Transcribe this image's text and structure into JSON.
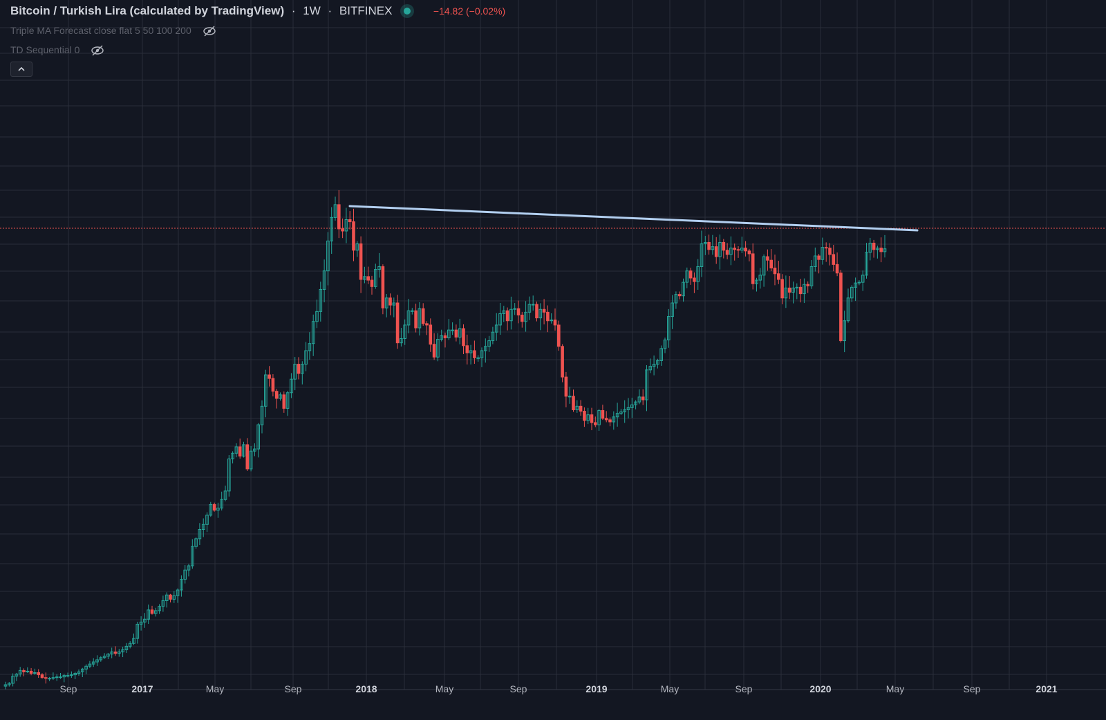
{
  "legend": {
    "title": "Bitcoin / Turkish Lira (calculated by TradingView)",
    "interval": "1W",
    "exchange": "BITFINEX",
    "change": "−14.82 (−0.02%)"
  },
  "indicators": [
    {
      "label": "Triple MA Forecast close flat 5 50 100 200",
      "icon": "eye-off-icon"
    },
    {
      "label": "TD Sequential 0",
      "icon": "eye-off-icon"
    }
  ],
  "colors": {
    "background": "#131722",
    "up": "#26a69a",
    "down": "#ef5350",
    "grid": "#2a2e39",
    "trendline": "#b2cff0",
    "price_line": "#ef5350"
  },
  "chart_data": {
    "type": "candlestick",
    "title": "Bitcoin / Turkish Lira (calculated by TradingView)",
    "interval": "1W",
    "x_ticks": [
      "Sep",
      "2017",
      "May",
      "Sep",
      "2018",
      "May",
      "Sep",
      "2019",
      "May",
      "Sep",
      "2020",
      "May",
      "Sep",
      "2021"
    ],
    "price_scale": "not shown",
    "weekly_closes_approx": [
      5.0,
      5.2,
      6.2,
      6.5,
      7.0,
      6.8,
      6.9,
      6.6,
      6.7,
      6.4,
      6.0,
      5.9,
      5.9,
      6.0,
      6.1,
      6.1,
      6.3,
      6.3,
      6.4,
      6.6,
      6.8,
      7.2,
      7.6,
      7.9,
      8.2,
      8.5,
      8.8,
      9.0,
      9.3,
      9.6,
      9.4,
      9.6,
      9.9,
      10.4,
      10.8,
      11.5,
      13.5,
      13.8,
      14.2,
      15.5,
      15.0,
      15.4,
      16.0,
      16.8,
      17.6,
      17.0,
      17.5,
      18.3,
      19.8,
      21.1,
      21.7,
      24.4,
      25.5,
      26.8,
      27.5,
      28.8,
      30.3,
      29.5,
      29.8,
      31.0,
      32.2,
      36.7,
      37.5,
      38.4,
      37.1,
      38.7,
      35.3,
      37.8,
      38.1,
      41.5,
      44.1,
      48.5,
      48.0,
      46.2,
      45.2,
      45.7,
      43.8,
      46.0,
      47.9,
      50.0,
      48.7,
      50.0,
      51.9,
      52.9,
      56.0,
      57.4,
      60.5,
      63.1,
      67.3,
      70.6,
      72.4,
      69.0,
      68.7,
      70.3,
      70.0,
      66.0,
      66.9,
      61.9,
      62.3,
      61.8,
      60.9,
      63.3,
      63.7,
      57.9,
      59.3,
      58.3,
      58.6,
      53.0,
      53.6,
      55.5,
      57.5,
      57.5,
      55.1,
      57.8,
      55.7,
      55.5,
      52.8,
      51.0,
      53.5,
      54.0,
      53.7,
      54.8,
      54.8,
      53.8,
      55.0,
      52.6,
      51.6,
      51.9,
      50.9,
      50.9,
      51.9,
      52.5,
      53.3,
      54.5,
      55.5,
      57.1,
      57.5,
      56.1,
      57.7,
      57.8,
      56.9,
      56.0,
      57.3,
      58.4,
      58.4,
      56.5,
      57.7,
      57.3,
      56.1,
      56.2,
      55.5,
      52.5,
      48.2,
      45.5,
      45.5,
      43.6,
      44.1,
      43.4,
      42.1,
      42.9,
      41.8,
      41.5,
      43.5,
      42.4,
      42.2,
      41.9,
      42.6,
      43.1,
      43.3,
      43.6,
      43.9,
      44.3,
      44.7,
      45.4,
      45.0,
      49.2,
      49.7,
      50.0,
      50.5,
      52.2,
      53.4,
      56.7,
      58.6,
      59.8,
      59.6,
      61.5,
      63.1,
      62.1,
      61.6,
      63.7,
      66.9,
      67.1,
      66.1,
      66.5,
      65.1,
      67.1,
      66.0,
      65.4,
      66.3,
      66.1,
      66.0,
      66.3,
      65.9,
      65.5,
      61.3,
      61.8,
      62.5,
      65.1,
      64.6,
      63.5,
      62.7,
      61.9,
      59.3,
      60.7,
      60.1,
      60.7,
      60.8,
      59.9,
      61.2,
      61.0,
      63.7,
      65.2,
      64.7,
      66.4,
      66.3,
      65.4,
      64.0,
      62.8,
      53.3,
      56.1,
      59.3,
      60.8,
      61.4,
      61.5,
      62.5,
      65.7,
      67.0,
      66.1,
      66.3,
      65.8,
      66.2
    ]
  }
}
